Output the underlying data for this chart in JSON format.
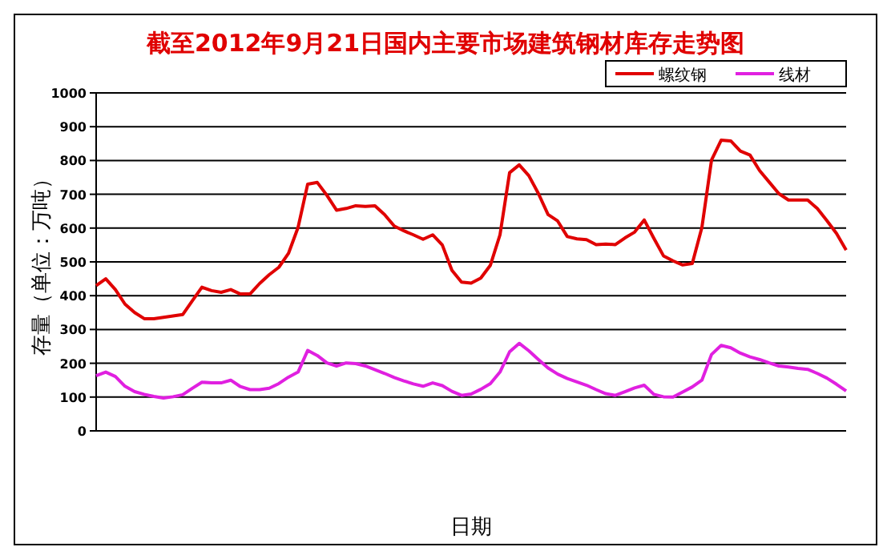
{
  "chart_data": {
    "type": "line",
    "title": "截至2012年9月21日国内主要市场建筑钢材库存走势图",
    "xlabel": "日期",
    "ylabel": "存量（单位：万吨）",
    "categories": [
      null,
      null,
      null,
      null,
      null,
      null,
      null,
      null,
      null,
      null,
      null,
      null,
      null,
      null,
      null,
      null,
      null,
      null,
      null,
      null,
      null,
      null,
      null,
      null,
      null,
      null,
      null,
      null,
      null,
      null,
      null,
      null,
      null,
      null,
      null,
      null,
      null,
      null,
      null,
      null,
      null,
      null,
      null,
      null,
      null,
      null,
      null,
      null,
      null,
      null,
      null,
      null,
      null,
      null,
      null,
      null,
      null,
      null,
      null,
      null,
      null,
      null,
      null,
      null,
      null,
      null,
      null,
      null,
      null,
      null,
      null,
      null,
      null,
      null,
      null,
      null,
      null,
      null,
      null
    ],
    "series": [
      {
        "name": "螺纹钢",
        "color": "#e00000",
        "values": [
          430,
          450,
          418,
          375,
          350,
          332,
          332,
          336,
          340,
          344,
          385,
          425,
          415,
          410,
          418,
          405,
          405,
          436,
          462,
          484,
          525,
          602,
          730,
          735,
          697,
          653,
          658,
          666,
          664,
          666,
          640,
          606,
          592,
          580,
          567,
          580,
          550,
          475,
          440,
          437,
          452,
          490,
          580,
          764,
          787,
          755,
          702,
          640,
          621,
          575,
          568,
          566,
          551,
          553,
          551,
          571,
          588,
          624,
          570,
          518,
          503,
          491,
          495,
          602,
          801,
          860,
          858,
          828,
          816,
          770,
          736,
          702,
          683,
          683,
          683,
          658,
          622,
          584,
          535
        ]
      },
      {
        "name": "线材",
        "color": "#e020e0",
        "values": [
          163,
          174,
          161,
          132,
          116,
          108,
          102,
          97,
          101,
          107,
          126,
          144,
          142,
          142,
          150,
          131,
          122,
          122,
          126,
          140,
          159,
          174,
          238,
          223,
          201,
          192,
          201,
          199,
          192,
          181,
          170,
          158,
          148,
          139,
          132,
          142,
          134,
          117,
          105,
          109,
          123,
          140,
          174,
          234,
          259,
          237,
          211,
          186,
          168,
          155,
          145,
          135,
          122,
          110,
          105,
          116,
          127,
          135,
          108,
          101,
          100,
          115,
          130,
          150,
          226,
          253,
          246,
          230,
          219,
          211,
          201,
          192,
          189,
          185,
          182,
          170,
          156,
          138,
          118
        ]
      }
    ],
    "ylim": [
      0,
      1000
    ],
    "yticks": [
      0,
      100,
      200,
      300,
      400,
      500,
      600,
      700,
      800,
      900,
      1000
    ],
    "grid": "y",
    "legend": "top right",
    "marker": "none",
    "line_style": "solid"
  }
}
